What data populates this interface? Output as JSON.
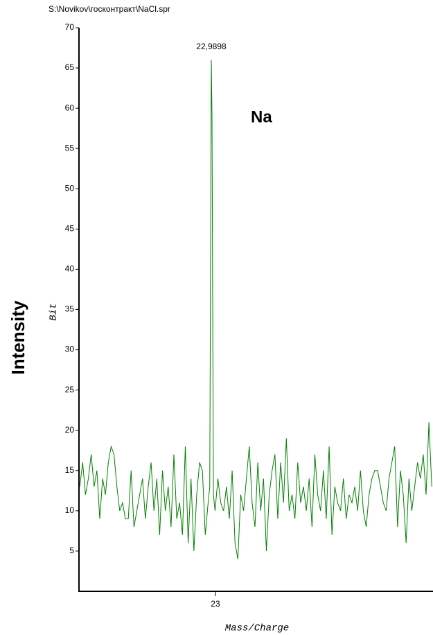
{
  "chart_data": {
    "type": "line",
    "title": "S:\\Novikov\\госконтракт\\NaCl.spr",
    "ylabel": "Bit",
    "outer_ylabel": "Intensity",
    "xlabel": "Mass/Charge",
    "element_label": "Na",
    "annotations": [
      {
        "text": "22,9898",
        "x": 22.9898
      }
    ],
    "color": "#008000",
    "x": [
      22.667,
      22.674,
      22.681,
      22.688,
      22.695,
      22.702,
      22.709,
      22.716,
      22.723,
      22.73,
      22.737,
      22.744,
      22.751,
      22.758,
      22.765,
      22.772,
      22.779,
      22.786,
      22.793,
      22.8,
      22.807,
      22.814,
      22.821,
      22.828,
      22.835,
      22.842,
      22.849,
      22.856,
      22.863,
      22.87,
      22.877,
      22.884,
      22.891,
      22.898,
      22.905,
      22.912,
      22.919,
      22.926,
      22.933,
      22.94,
      22.947,
      22.954,
      22.961,
      22.968,
      22.975,
      22.982,
      22.986,
      22.9898,
      22.9915,
      22.995,
      22.999,
      23.006,
      23.013,
      23.02,
      23.027,
      23.034,
      23.041,
      23.048,
      23.055,
      23.062,
      23.069,
      23.076,
      23.083,
      23.09,
      23.097,
      23.104,
      23.111,
      23.118,
      23.125,
      23.132,
      23.139,
      23.146,
      23.153,
      23.16,
      23.167,
      23.174,
      23.181,
      23.188,
      23.195,
      23.202,
      23.209,
      23.216,
      23.223,
      23.23,
      23.237,
      23.244,
      23.251,
      23.258,
      23.265,
      23.272,
      23.279,
      23.286,
      23.293,
      23.3,
      23.307,
      23.314,
      23.321,
      23.328,
      23.335,
      23.342,
      23.349,
      23.356,
      23.363,
      23.37,
      23.377,
      23.384,
      23.391,
      23.398,
      23.405,
      23.412,
      23.419,
      23.426,
      23.433,
      23.44,
      23.447,
      23.454,
      23.461,
      23.468,
      23.475,
      23.482,
      23.489,
      23.496,
      23.503,
      23.51,
      23.517,
      23.524,
      23.531
    ],
    "values": [
      13,
      16,
      12,
      14,
      17,
      13,
      15,
      9,
      14,
      12,
      16,
      18,
      17,
      13,
      10,
      11,
      9,
      9,
      15,
      8,
      10,
      12,
      14,
      9,
      13,
      16,
      10,
      14,
      7,
      15,
      10,
      13,
      8,
      17,
      9,
      11,
      7,
      18,
      6,
      14,
      5,
      12,
      16,
      15,
      7,
      11,
      13,
      66,
      59,
      12,
      10,
      14,
      11,
      10,
      13,
      9,
      15,
      6,
      4,
      12,
      10,
      14,
      18,
      11,
      8,
      16,
      10,
      14,
      5,
      12,
      15,
      17,
      9,
      16,
      11,
      19,
      10,
      12,
      9,
      16,
      11,
      13,
      10,
      14,
      8,
      17,
      12,
      10,
      15,
      9,
      18,
      7,
      13,
      11,
      10,
      14,
      9,
      12,
      11,
      13,
      10,
      15,
      10,
      8,
      12,
      14,
      15,
      15,
      13,
      11,
      10,
      14,
      16,
      18,
      8,
      15,
      12,
      6,
      14,
      10,
      13,
      16,
      14,
      17,
      12,
      21,
      13
    ],
    "xlim": [
      22.665,
      23.534
    ],
    "xticks": [
      23
    ],
    "ylim": [
      0,
      70
    ],
    "yticks": [
      5,
      10,
      15,
      20,
      25,
      30,
      35,
      40,
      45,
      50,
      55,
      60,
      65,
      70
    ]
  }
}
